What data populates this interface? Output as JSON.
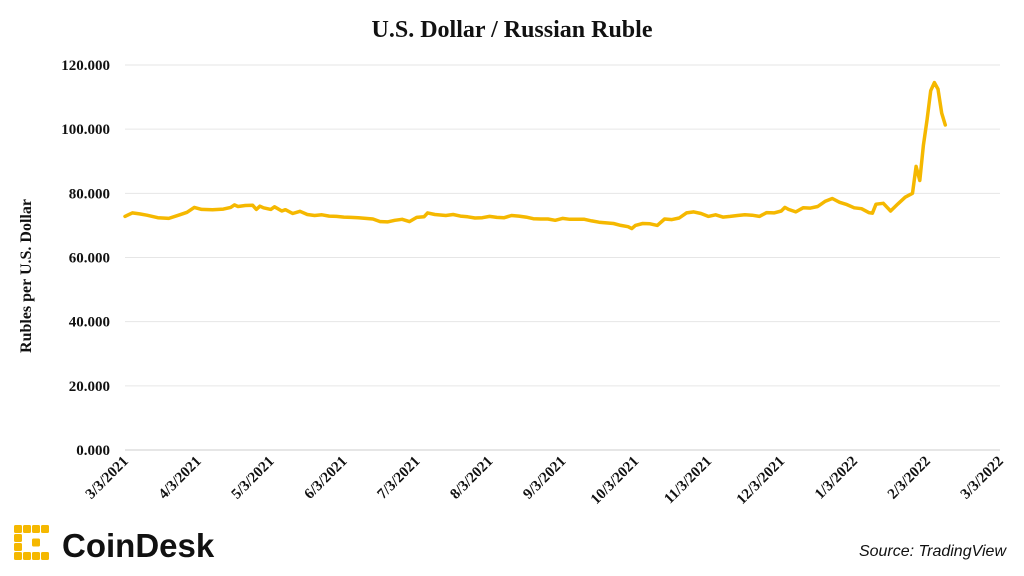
{
  "chart_data": {
    "type": "line",
    "title": "U.S. Dollar / Russian Ruble",
    "ylabel": "Rubles per U.S. Dollar",
    "xlabel": "",
    "ylim": [
      0,
      120
    ],
    "yticks": [
      "0.000",
      "20.000",
      "40.000",
      "60.000",
      "80.000",
      "100.000",
      "120.000"
    ],
    "xticks": [
      "3/3/2021",
      "4/3/2021",
      "5/3/2021",
      "6/3/2021",
      "7/3/2021",
      "8/3/2021",
      "9/3/2021",
      "10/3/2021",
      "11/3/2021",
      "12/3/2021",
      "1/3/2022",
      "2/3/2022",
      "3/3/2022"
    ],
    "grid": true,
    "legend": "none",
    "series": [
      {
        "color": "#f5b800",
        "points": [
          [
            0.0,
            72.8
          ],
          [
            0.1,
            73.9
          ],
          [
            0.2,
            73.6
          ],
          [
            0.3,
            73.2
          ],
          [
            0.45,
            72.4
          ],
          [
            0.6,
            72.2
          ],
          [
            0.75,
            73.3
          ],
          [
            0.85,
            74.1
          ],
          [
            0.95,
            75.6
          ],
          [
            1.05,
            75.0
          ],
          [
            1.2,
            74.9
          ],
          [
            1.35,
            75.1
          ],
          [
            1.45,
            75.6
          ],
          [
            1.5,
            76.4
          ],
          [
            1.55,
            75.9
          ],
          [
            1.65,
            76.2
          ],
          [
            1.75,
            76.3
          ],
          [
            1.8,
            75.0
          ],
          [
            1.85,
            76.0
          ],
          [
            1.9,
            75.5
          ],
          [
            2.0,
            75.0
          ],
          [
            2.05,
            75.8
          ],
          [
            2.15,
            74.5
          ],
          [
            2.2,
            74.9
          ],
          [
            2.3,
            73.7
          ],
          [
            2.4,
            74.4
          ],
          [
            2.5,
            73.4
          ],
          [
            2.6,
            73.1
          ],
          [
            2.7,
            73.3
          ],
          [
            2.8,
            72.9
          ],
          [
            2.9,
            72.8
          ],
          [
            3.0,
            72.6
          ],
          [
            3.1,
            72.5
          ],
          [
            3.2,
            72.4
          ],
          [
            3.3,
            72.2
          ],
          [
            3.4,
            72.0
          ],
          [
            3.5,
            71.2
          ],
          [
            3.6,
            71.1
          ],
          [
            3.7,
            71.6
          ],
          [
            3.8,
            71.9
          ],
          [
            3.9,
            71.2
          ],
          [
            4.0,
            72.5
          ],
          [
            4.1,
            72.7
          ],
          [
            4.15,
            73.9
          ],
          [
            4.25,
            73.4
          ],
          [
            4.4,
            73.1
          ],
          [
            4.5,
            73.4
          ],
          [
            4.6,
            72.9
          ],
          [
            4.7,
            72.7
          ],
          [
            4.8,
            72.3
          ],
          [
            4.9,
            72.4
          ],
          [
            5.0,
            72.8
          ],
          [
            5.1,
            72.5
          ],
          [
            5.2,
            72.4
          ],
          [
            5.3,
            73.1
          ],
          [
            5.4,
            72.9
          ],
          [
            5.5,
            72.6
          ],
          [
            5.6,
            72.1
          ],
          [
            5.7,
            72.0
          ],
          [
            5.8,
            72.0
          ],
          [
            5.9,
            71.6
          ],
          [
            6.0,
            72.2
          ],
          [
            6.1,
            71.9
          ],
          [
            6.2,
            71.9
          ],
          [
            6.3,
            71.9
          ],
          [
            6.4,
            71.4
          ],
          [
            6.5,
            71.0
          ],
          [
            6.6,
            70.8
          ],
          [
            6.7,
            70.6
          ],
          [
            6.8,
            70.0
          ],
          [
            6.9,
            69.6
          ],
          [
            6.95,
            69.0
          ],
          [
            7.0,
            70.0
          ],
          [
            7.1,
            70.6
          ],
          [
            7.2,
            70.5
          ],
          [
            7.3,
            70.0
          ],
          [
            7.4,
            72.0
          ],
          [
            7.5,
            71.8
          ],
          [
            7.6,
            72.3
          ],
          [
            7.7,
            73.9
          ],
          [
            7.8,
            74.2
          ],
          [
            7.9,
            73.7
          ],
          [
            8.0,
            72.8
          ],
          [
            8.1,
            73.3
          ],
          [
            8.2,
            72.6
          ],
          [
            8.3,
            72.8
          ],
          [
            8.4,
            73.1
          ],
          [
            8.5,
            73.3
          ],
          [
            8.6,
            73.2
          ],
          [
            8.7,
            72.8
          ],
          [
            8.8,
            74.0
          ],
          [
            8.9,
            73.9
          ],
          [
            9.0,
            74.5
          ],
          [
            9.05,
            75.6
          ],
          [
            9.1,
            75.0
          ],
          [
            9.2,
            74.2
          ],
          [
            9.3,
            75.5
          ],
          [
            9.4,
            75.4
          ],
          [
            9.5,
            75.9
          ],
          [
            9.6,
            77.5
          ],
          [
            9.7,
            78.4
          ],
          [
            9.8,
            77.2
          ],
          [
            9.9,
            76.5
          ],
          [
            10.0,
            75.5
          ],
          [
            10.1,
            75.2
          ],
          [
            10.2,
            74.0
          ],
          [
            10.25,
            73.8
          ],
          [
            10.3,
            76.6
          ],
          [
            10.4,
            76.9
          ],
          [
            10.5,
            74.5
          ],
          [
            10.6,
            76.7
          ],
          [
            10.7,
            78.8
          ],
          [
            10.8,
            80.0
          ],
          [
            10.85,
            88.4
          ],
          [
            10.9,
            84.0
          ],
          [
            10.95,
            95.0
          ],
          [
            11.0,
            103.0
          ],
          [
            11.05,
            112.0
          ],
          [
            11.1,
            114.5
          ],
          [
            11.15,
            112.5
          ],
          [
            11.2,
            105.0
          ],
          [
            11.25,
            101.3
          ]
        ]
      }
    ]
  },
  "branding": {
    "logo_text": "CoinDesk",
    "logo_color": "#f5b800",
    "source": "Source: TradingView"
  }
}
